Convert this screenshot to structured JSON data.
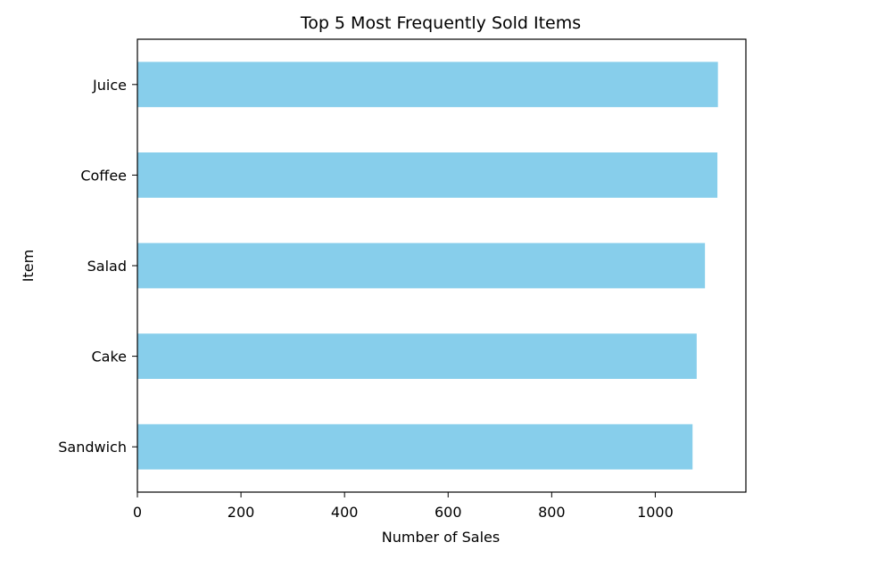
{
  "chart_data": {
    "type": "bar",
    "orientation": "horizontal",
    "title": "Top 5 Most Frequently Sold Items",
    "xlabel": "Number of Sales",
    "ylabel": "Item",
    "categories": [
      "Sandwich",
      "Cake",
      "Salad",
      "Coffee",
      "Juice"
    ],
    "values": [
      1072,
      1080,
      1096,
      1120,
      1121
    ],
    "xlim": [
      0,
      1175
    ],
    "xticks": [
      0,
      200,
      400,
      600,
      800,
      1000
    ],
    "bar_color": "#87ceeb",
    "grid": false,
    "legend": "none"
  }
}
